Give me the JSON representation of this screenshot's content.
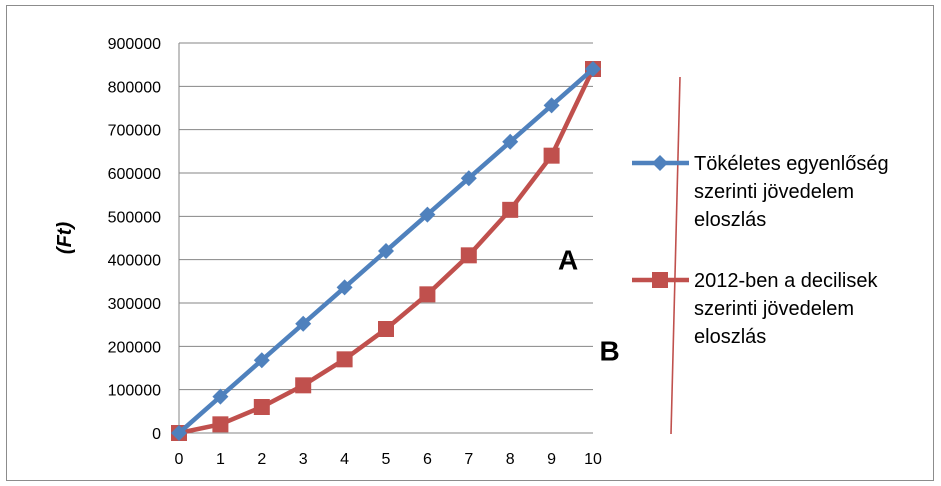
{
  "chart_data": {
    "type": "line",
    "title": "",
    "xlabel": "",
    "ylabel": "(Ft)",
    "x": [
      0,
      1,
      2,
      3,
      4,
      5,
      6,
      7,
      8,
      9,
      10
    ],
    "xlim": [
      0,
      10
    ],
    "ylim": [
      0,
      900000
    ],
    "y_ticks": [
      0,
      100000,
      200000,
      300000,
      400000,
      500000,
      600000,
      700000,
      800000,
      900000
    ],
    "grid": true,
    "legend_position": "right",
    "series": [
      {
        "name_lines": [
          "Tökéletes egyenlőség",
          "szerinti jövedelem",
          "eloszlás"
        ],
        "color": "#4f81bd",
        "marker": "diamond",
        "values": [
          0,
          84000,
          168000,
          252000,
          336000,
          420000,
          504000,
          588000,
          672000,
          756000,
          840000
        ]
      },
      {
        "name_lines": [
          "2012-ben a decilisek",
          "szerinti jövedelem",
          "eloszlás"
        ],
        "color": "#c0504d",
        "marker": "square",
        "values": [
          0,
          20000,
          60000,
          110000,
          170000,
          240000,
          320000,
          410000,
          515000,
          640000,
          840000
        ]
      }
    ],
    "annotations": [
      {
        "text": "A",
        "x": 9.4,
        "y": 400000
      },
      {
        "text": "B",
        "x": 10.4,
        "y": 190000
      }
    ],
    "extra_line": {
      "color": "#c0504d"
    }
  }
}
